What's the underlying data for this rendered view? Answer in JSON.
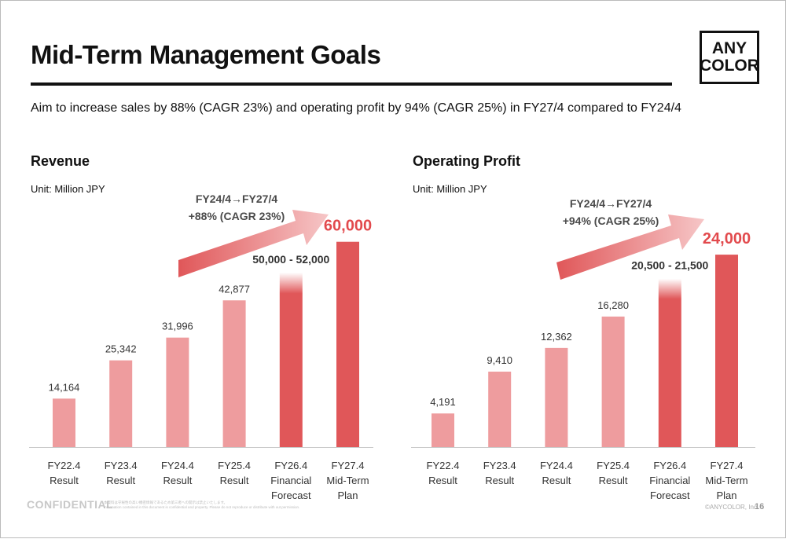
{
  "slide": {
    "title": "Mid-Term Management Goals",
    "subtitle": "Aim to increase sales by 88% (CAGR 23%) and operating profit by 94% (CAGR 25%) in FY27/4 compared to FY24/4",
    "logo_line1": "ANY",
    "logo_line2": "COLOR"
  },
  "colors": {
    "result_bar": "#EE9C9E",
    "plan_bar": "#E05759",
    "target_label": "#E24A4D",
    "arrow_start": "#E05759",
    "arrow_end": "#F6C6C7"
  },
  "chart_data": [
    {
      "type": "bar",
      "title": "Revenue",
      "unit": "Unit: Million JPY",
      "categories": [
        "FY22.4\nResult",
        "FY23.4\nResult",
        "FY24.4\nResult",
        "FY25.4\nResult",
        "FY26.4\nFinancial\nForecast",
        "FY27.4\nMid-Term\nPlan"
      ],
      "values": [
        14164,
        25342,
        31996,
        42877,
        51000,
        60000
      ],
      "value_labels": [
        "14,164",
        "25,342",
        "31,996",
        "42,877",
        "50,000 - 52,000",
        "60,000"
      ],
      "kinds": [
        "result",
        "result",
        "result",
        "result",
        "forecast",
        "plan"
      ],
      "arrow_text_line1": "FY24/4→FY27/4",
      "arrow_text_line2": "+88% (CAGR 23%)",
      "ylim": [
        0,
        62000
      ]
    },
    {
      "type": "bar",
      "title": "Operating Profit",
      "unit": "Unit: Million JPY",
      "categories": [
        "FY22.4\nResult",
        "FY23.4\nResult",
        "FY24.4\nResult",
        "FY25.4\nResult",
        "FY26.4\nFinancial\nForecast",
        "FY27.4\nMid-Term\nPlan"
      ],
      "values": [
        4191,
        9410,
        12362,
        16280,
        21000,
        24000
      ],
      "value_labels": [
        "4,191",
        "9,410",
        "12,362",
        "16,280",
        "20,500 - 21,500",
        "24,000"
      ],
      "kinds": [
        "result",
        "result",
        "result",
        "result",
        "forecast",
        "plan"
      ],
      "arrow_text_line1": "FY24/4→FY27/4",
      "arrow_text_line2": "+94% (CAGR 25%)",
      "ylim": [
        0,
        24500
      ]
    }
  ],
  "footer": {
    "confidential": "CONFIDENTIAL",
    "note_line1": "本資料は守秘性の高い機密情報であるため第三者への開示は禁止いたします。",
    "note_line2": "Information contained in this document is confidential and property. Please do not reproduce or distribute with out permission.",
    "copyright": "©ANYCOLOR, Inc.",
    "page": "16"
  }
}
